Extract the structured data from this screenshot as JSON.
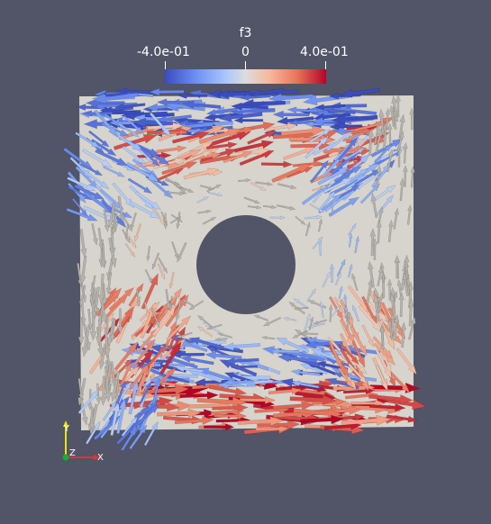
{
  "colorbar": {
    "title": "f3",
    "min_label": "-4.0e-01",
    "mid_label": "0",
    "max_label": "4.0e-01",
    "colormap": [
      "#3b4cc0",
      "#6f92f3",
      "#aac7fd",
      "#dddcdc",
      "#f7b89c",
      "#e7745b",
      "#b40426"
    ]
  },
  "colors": {
    "background": "#525467",
    "domain": "#d6d4cc",
    "hole": "#525467",
    "neutral_arrow": "#b5b2ac"
  },
  "axes": {
    "y": "Y",
    "z": "Z",
    "x": "X",
    "y_color": "#e8e800",
    "z_color": "#1faa30",
    "x_color": "#e83030"
  }
}
